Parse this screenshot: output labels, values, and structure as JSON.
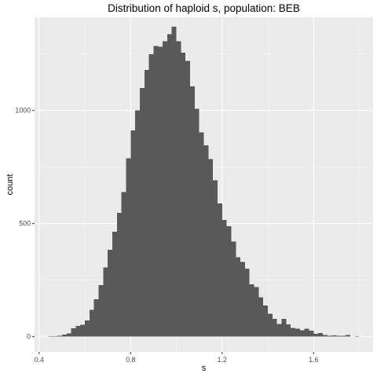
{
  "chart_data": {
    "type": "bar",
    "title": "Distribution of haploid s, population: BEB",
    "xlabel": "s",
    "ylabel": "count",
    "xlim": [
      0.38,
      1.86
    ],
    "ylim": [
      -67,
      1412
    ],
    "x_ticks": [
      0.4,
      0.8,
      1.2,
      1.6
    ],
    "x_tick_labels": [
      "0.4",
      "0.8",
      "1.2",
      "1.6"
    ],
    "y_ticks": [
      0,
      500,
      1000
    ],
    "y_tick_labels": [
      "0",
      "500",
      "1000"
    ],
    "grid": true,
    "bin_width": 0.02,
    "bin_centers": [
      0.45,
      0.47,
      0.49,
      0.51,
      0.53,
      0.55,
      0.57,
      0.59,
      0.61,
      0.63,
      0.65,
      0.67,
      0.69,
      0.71,
      0.73,
      0.75,
      0.77,
      0.79,
      0.81,
      0.83,
      0.85,
      0.87,
      0.89,
      0.91,
      0.93,
      0.95,
      0.97,
      0.99,
      1.01,
      1.03,
      1.05,
      1.07,
      1.09,
      1.11,
      1.13,
      1.15,
      1.17,
      1.19,
      1.21,
      1.23,
      1.25,
      1.27,
      1.29,
      1.31,
      1.33,
      1.35,
      1.37,
      1.39,
      1.41,
      1.43,
      1.45,
      1.47,
      1.49,
      1.51,
      1.53,
      1.55,
      1.57,
      1.59,
      1.61,
      1.63,
      1.65,
      1.67,
      1.69,
      1.71,
      1.73,
      1.75,
      1.77,
      1.79
    ],
    "values": [
      2,
      2,
      4,
      9,
      14,
      38,
      47,
      53,
      72,
      118,
      166,
      228,
      306,
      385,
      464,
      548,
      639,
      788,
      912,
      1001,
      1100,
      1180,
      1249,
      1285,
      1282,
      1306,
      1338,
      1371,
      1306,
      1256,
      1220,
      1106,
      1007,
      903,
      846,
      785,
      692,
      590,
      517,
      488,
      420,
      352,
      330,
      301,
      232,
      219,
      175,
      138,
      102,
      78,
      57,
      79,
      55,
      39,
      36,
      28,
      35,
      26,
      12,
      17,
      8,
      5,
      6,
      5,
      5,
      8,
      0,
      3
    ],
    "colors": {
      "panel": "#ebebeb",
      "grid_major": "#ffffff",
      "grid_minor": "#f5f5f5",
      "bar": "#595959",
      "tick_text": "#4d4d4d",
      "tick_mark": "#333333"
    }
  }
}
